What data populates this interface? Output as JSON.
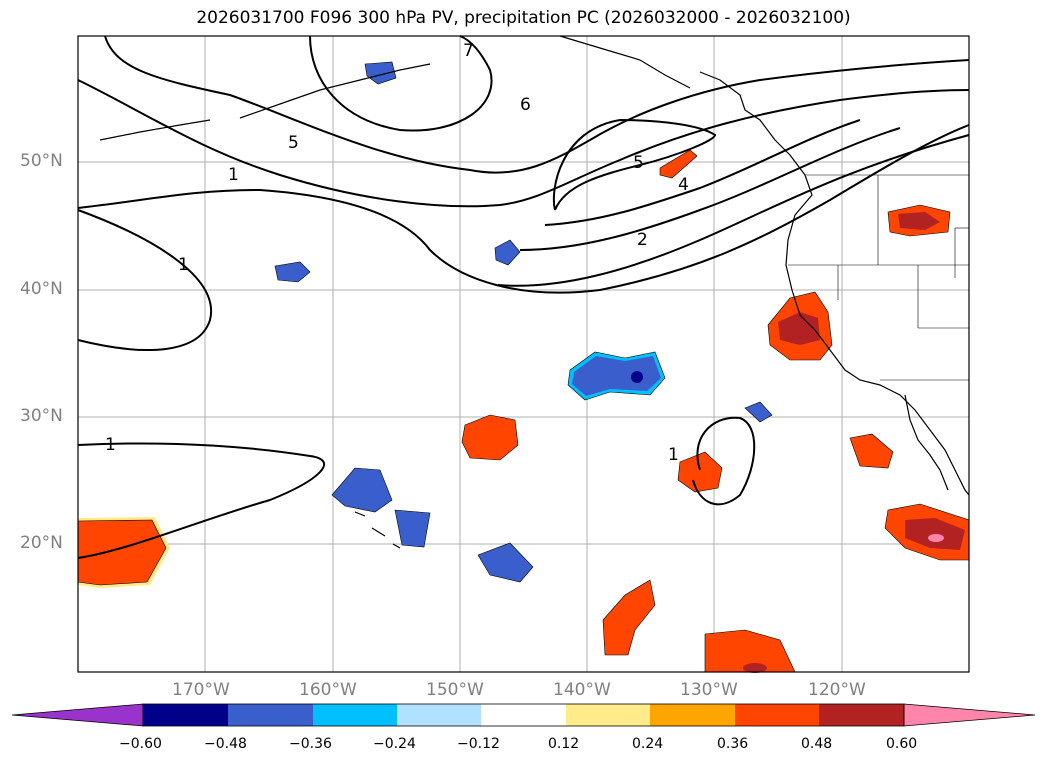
{
  "title": "2026031700 F096 300 hPa PV, precipitation PC (2026032000 - 2026032100)",
  "latitude_labels": [
    "50°N",
    "40°N",
    "30°N",
    "20°N"
  ],
  "longitude_labels": [
    "170°W",
    "160°W",
    "150°W",
    "140°W",
    "130°W",
    "120°W"
  ],
  "contour_labels": [
    "7",
    "6",
    "5",
    "5",
    "4",
    "2",
    "1",
    "1",
    "1",
    "1"
  ],
  "colorbar": {
    "tick_labels": [
      "−0.60",
      "−0.48",
      "−0.36",
      "−0.24",
      "−0.12",
      "0.12",
      "0.24",
      "0.36",
      "0.48",
      "0.60"
    ],
    "colors": {
      "under": "#9933cc",
      "bins": [
        "#00008b",
        "#3a5fcd",
        "#00bfff",
        "#b0e2ff",
        "#ffffff",
        "#ffeb8a",
        "#ffa500",
        "#ff4500",
        "#b22222",
        "#ff85aa"
      ],
      "over": "#ff85aa"
    }
  },
  "colors": {
    "land_border": "#000000",
    "grid": "#b0b0b0",
    "tick_label": "#808080"
  }
}
